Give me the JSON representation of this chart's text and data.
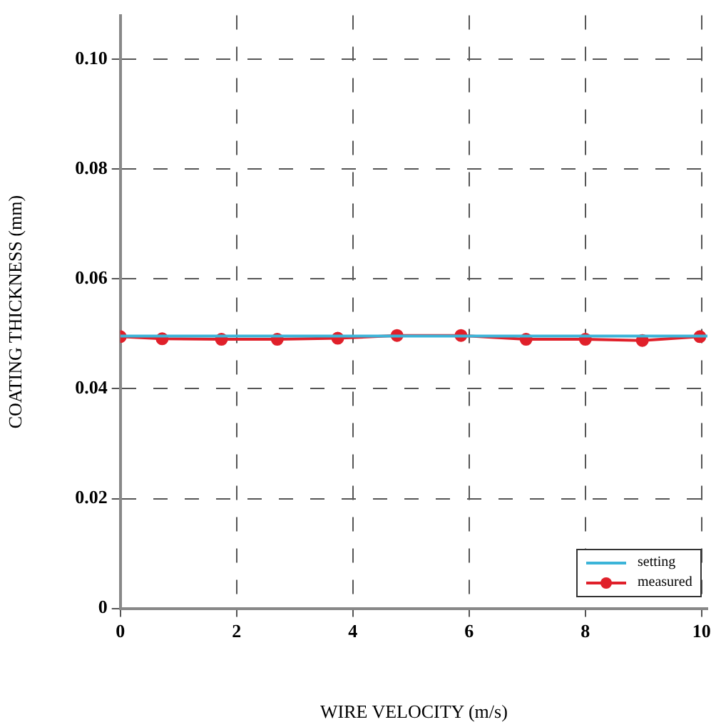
{
  "chart_data": {
    "type": "line",
    "xlabel": "WIRE VELOCITY (m/s)",
    "ylabel": "COATING THICKNESS (mm)",
    "xlim": [
      0,
      10.1
    ],
    "xticks": [
      0,
      2,
      4,
      6,
      8,
      10
    ],
    "ylim": [
      0,
      0.108
    ],
    "yticks": [
      0,
      {
        "value": 0.02,
        "label": "0.02"
      },
      {
        "value": 0.04,
        "label": "0.04"
      },
      {
        "value": 0.06,
        "label": "0.06"
      },
      {
        "value": 0.08,
        "label": "0.08"
      },
      {
        "value": 0.1,
        "label": "0.10"
      }
    ],
    "grid": true,
    "line_style": "solid",
    "legend": "bottom right",
    "series": [
      {
        "name": "setting",
        "color": "#3cb4d8",
        "marker": "none",
        "x": [
          0,
          10.1
        ],
        "values": [
          0.0496,
          0.0496
        ]
      },
      {
        "name": "measured",
        "color": "#e0202a",
        "marker": "circle",
        "x": [
          0,
          0.72,
          1.74,
          2.7,
          3.74,
          4.76,
          5.86,
          6.98,
          8.0,
          8.98,
          9.97
        ],
        "values": [
          0.0495,
          0.0491,
          0.049,
          0.049,
          0.0492,
          0.0497,
          0.0497,
          0.049,
          0.049,
          0.0488,
          0.0495
        ]
      }
    ]
  }
}
